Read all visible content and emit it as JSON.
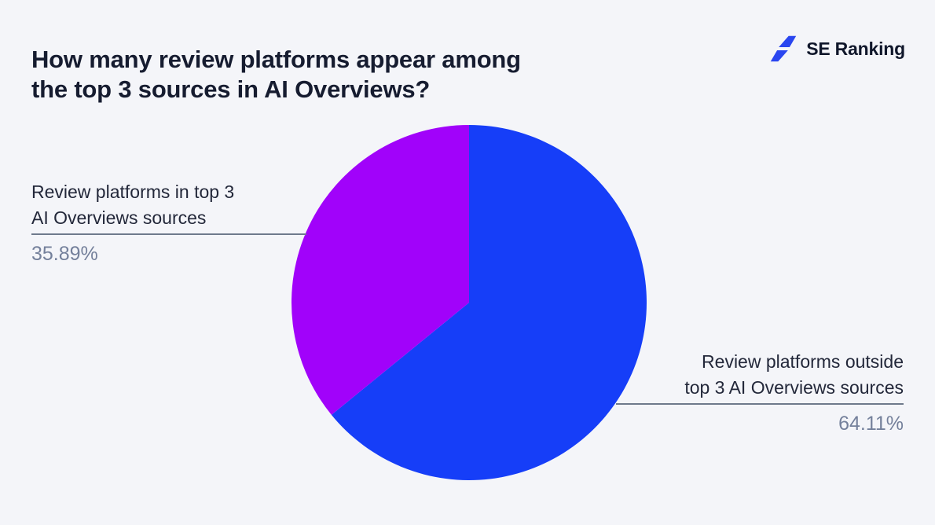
{
  "header": {
    "title_lines": [
      "How many review platforms appear among",
      "the top 3 sources in AI Overviews?"
    ]
  },
  "logo": {
    "text": "SE Ranking",
    "icon": "lightning-bolt-icon",
    "icon_color": "#2a46f0",
    "text_color": "#10172b"
  },
  "chart_data": {
    "type": "pie",
    "title": "How many review platforms appear among the top 3 sources in AI Overviews?",
    "start_angle_deg": 0,
    "direction": "clockwise",
    "legend_position": "callout-labels",
    "total": 100,
    "slices": [
      {
        "label": "Review platforms outside top 3 AI Overviews sources",
        "value": 64.11,
        "color": "#163ef8"
      },
      {
        "label": "Review platforms in top 3 AI Overviews sources",
        "value": 35.89,
        "color": "#a102fa"
      }
    ]
  },
  "callouts": {
    "left": {
      "line1": "Review platforms in top 3",
      "line2": "AI Overviews sources",
      "value": "35.89%"
    },
    "right": {
      "line1": "Review platforms outside",
      "line2": "top 3 AI Overviews sources",
      "value": "64.11%"
    }
  },
  "colors": {
    "background": "#f4f5f9",
    "title_text": "#161c30",
    "label_text": "#23283a",
    "value_text": "#74809b",
    "leader_line": "#6e7a8c"
  }
}
